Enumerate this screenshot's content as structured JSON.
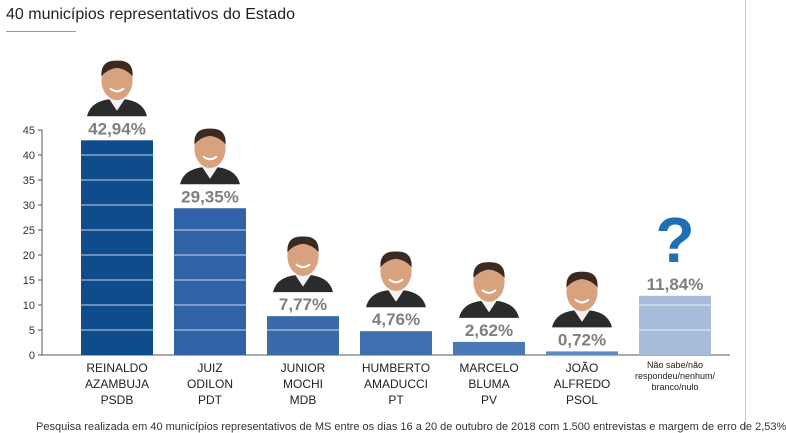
{
  "page": {
    "title": "40 municípios representativos do Estado",
    "footnote": "Pesquisa realizada em 40 municípios representativos de MS entre os dias 16 a 20 de outubro de 2018 com 1.500 entrevistas e margem de erro de 2,53%"
  },
  "chart_data": {
    "type": "bar",
    "title": "",
    "xlabel": "",
    "ylabel": "",
    "ylim": [
      0,
      45
    ],
    "yticks": [
      0,
      5,
      10,
      15,
      20,
      25,
      30,
      35,
      40,
      45
    ],
    "grid": false,
    "legend": "none",
    "categories": [
      [
        "REINALDO",
        "AZAMBUJA",
        "PSDB"
      ],
      [
        "JUIZ",
        "ODILON",
        "PDT"
      ],
      [
        "JUNIOR",
        "MOCHI",
        "MDB"
      ],
      [
        "HUMBERTO",
        "AMADUCCI",
        "PT"
      ],
      [
        "MARCELO",
        "BLUMA",
        "PV"
      ],
      [
        "JOÃO",
        "ALFREDO",
        "PSOL"
      ],
      [
        "Não sabe/não",
        "respondeu/nenhum/",
        "branco/nulo"
      ]
    ],
    "values": [
      42.94,
      29.35,
      7.77,
      4.76,
      2.62,
      0.72,
      11.84
    ],
    "value_labels": [
      "42,94%",
      "29,35%",
      "7,77%",
      "4,76%",
      "2,62%",
      "0,72%",
      "11,84%"
    ],
    "bar_colors": [
      "#0f4c8c",
      "#2f62a6",
      "#3a6aaa",
      "#3f6fae",
      "#4a79b6",
      "#5f8ac0",
      "#a7bbdb"
    ],
    "photo_icons": [
      "portrait-reinaldo-azambuja",
      "portrait-juiz-odilon",
      "portrait-junior-mochi",
      "portrait-humberto-amaducci",
      "portrait-marcelo-bluma",
      "portrait-joao-alfredo",
      "question-mark-icon"
    ],
    "question_mark": "?"
  }
}
